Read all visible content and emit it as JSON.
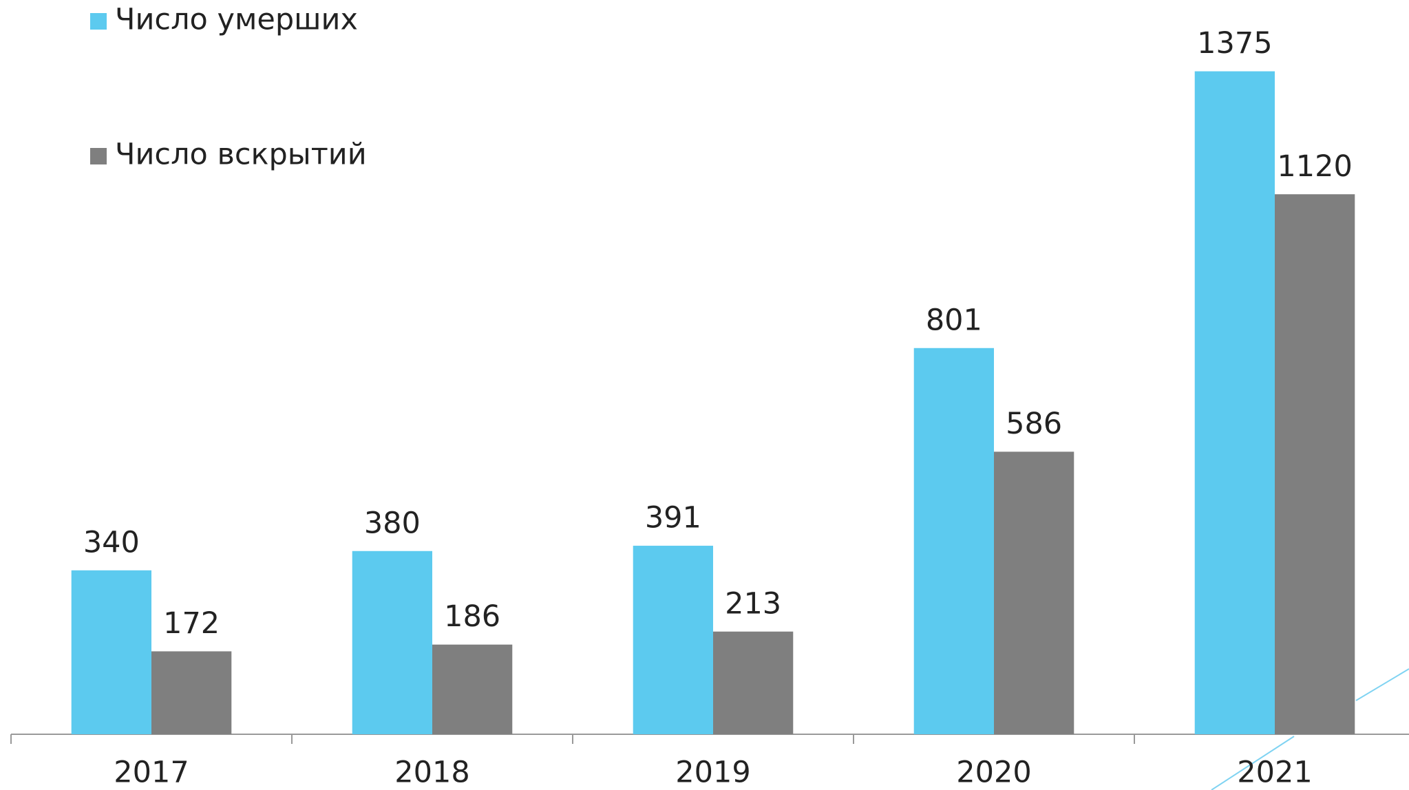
{
  "chart_data": {
    "type": "bar",
    "categories": [
      "2017",
      "2018",
      "2019",
      "2020",
      "2021"
    ],
    "series": [
      {
        "name": "Число умерших",
        "color": "#5ccaef",
        "values": [
          340,
          380,
          391,
          801,
          1375
        ]
      },
      {
        "name": "Число вскрытий",
        "color": "#7f7f7f",
        "values": [
          172,
          186,
          213,
          586,
          1120
        ]
      }
    ],
    "ylim": [
      0,
      1520
    ]
  }
}
